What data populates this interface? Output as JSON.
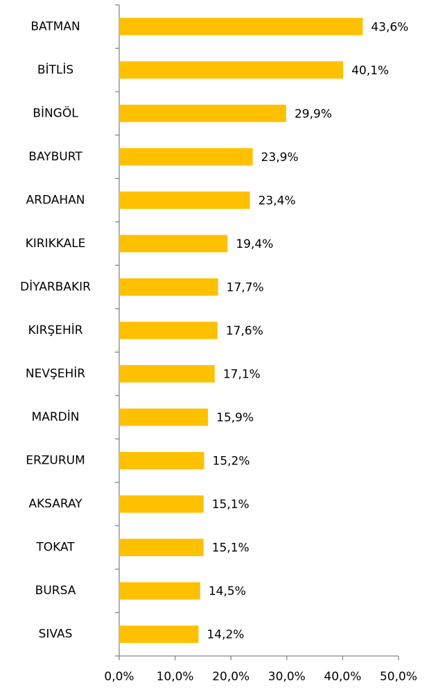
{
  "chart_data": {
    "type": "barh",
    "categories": [
      "BATMAN",
      "BİTLİS",
      "BİNGÖL",
      "BAYBURT",
      "ARDAHAN",
      "KIRIKKALE",
      "DİYARBAKIR",
      "KIRŞEHİR",
      "NEVŞEHİR",
      "MARDİN",
      "ERZURUM",
      "AKSARAY",
      "TOKAT",
      "BURSA",
      "SIVAS"
    ],
    "values": [
      43.6,
      40.1,
      29.9,
      23.9,
      23.4,
      19.4,
      17.7,
      17.6,
      17.1,
      15.9,
      15.2,
      15.1,
      15.1,
      14.5,
      14.2
    ],
    "value_labels": [
      "43,6%",
      "40,1%",
      "29,9%",
      "23,9%",
      "23,4%",
      "19,4%",
      "17,7%",
      "17,6%",
      "17,1%",
      "15,9%",
      "15,2%",
      "15,1%",
      "15,1%",
      "14,5%",
      "14,2%"
    ],
    "color": "#ffc000",
    "xlim": [
      0,
      50
    ],
    "xticks": [
      {
        "value": 0,
        "label": "0,0%"
      },
      {
        "value": 10,
        "label": "10,0%"
      },
      {
        "value": 20,
        "label": "20,0%"
      },
      {
        "value": 30,
        "label": "30,0%"
      },
      {
        "value": 40,
        "label": "40,0%"
      },
      {
        "value": 50,
        "label": "50,0%"
      }
    ],
    "grid": false
  }
}
